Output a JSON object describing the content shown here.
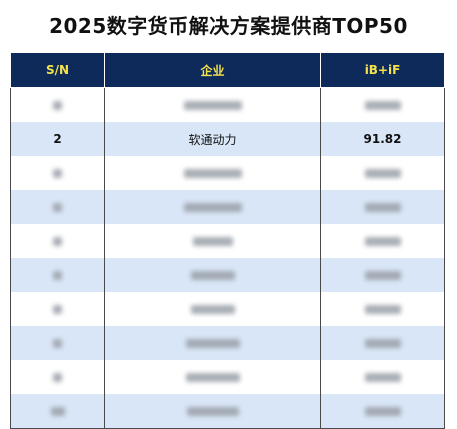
{
  "title": "2025数字货币解决方案提供商TOP50",
  "table": {
    "headers": [
      "S/N",
      "企业",
      "iB+iF"
    ],
    "rows": [
      {
        "sn": "",
        "company": "",
        "score": "",
        "blurred": true
      },
      {
        "sn": "2",
        "company": "软通动力",
        "score": "91.82",
        "blurred": false
      },
      {
        "sn": "",
        "company": "",
        "score": "",
        "blurred": true
      },
      {
        "sn": "",
        "company": "",
        "score": "",
        "blurred": true
      },
      {
        "sn": "",
        "company": "",
        "score": "",
        "blurred": true
      },
      {
        "sn": "",
        "company": "",
        "score": "",
        "blurred": true
      },
      {
        "sn": "",
        "company": "",
        "score": "",
        "blurred": true
      },
      {
        "sn": "",
        "company": "",
        "score": "",
        "blurred": true
      },
      {
        "sn": "",
        "company": "",
        "score": "",
        "blurred": true
      },
      {
        "sn": "",
        "company": "",
        "score": "",
        "blurred": true
      }
    ]
  }
}
